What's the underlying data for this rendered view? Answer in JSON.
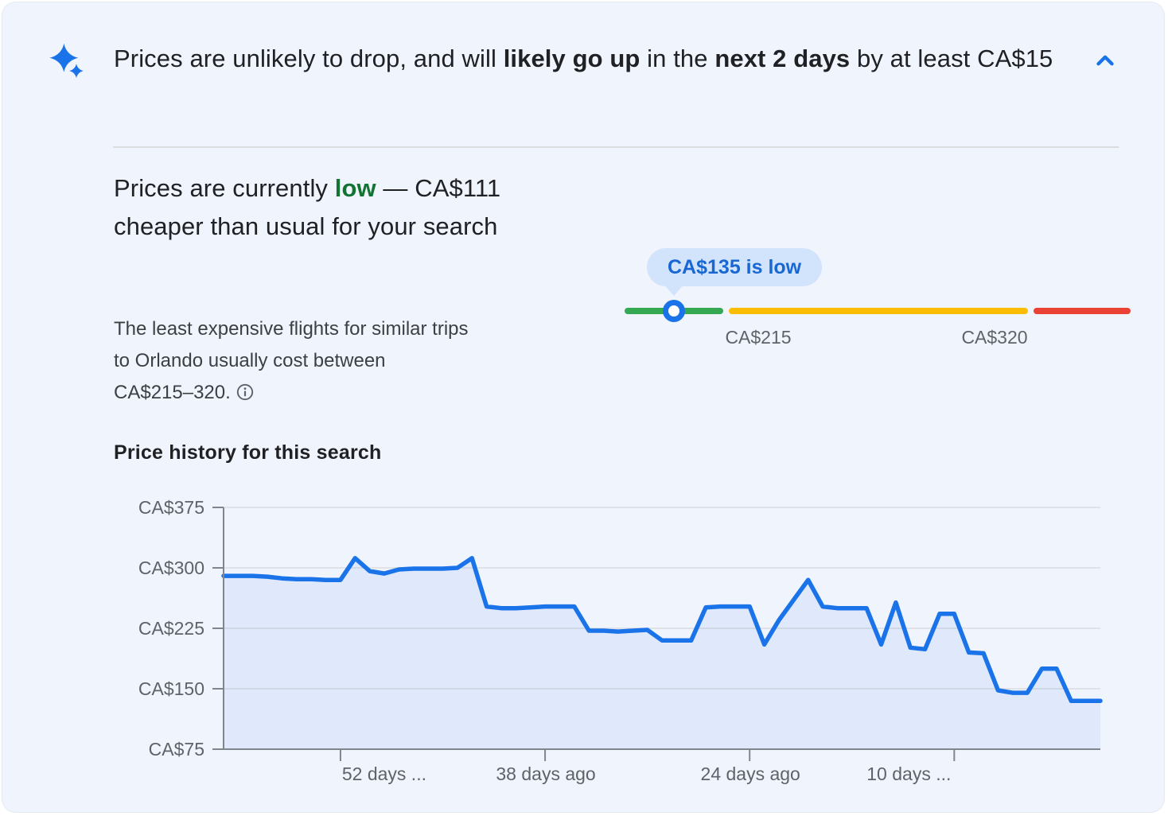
{
  "insight_header": {
    "t1": "Prices are unlikely to drop, and will ",
    "t2": "likely go up",
    "t3": " in the ",
    "t4": "next 2 days",
    "t5": " by at least CA$15"
  },
  "current_price": {
    "t1": "Prices are currently ",
    "t2": "low",
    "t3": " — CA$111 cheaper than usual for your search",
    "detail": "The least expensive flights for similar trips to Orlando usually cost between CA$215–320."
  },
  "price_slider": {
    "tooltip": "CA$135 is low",
    "current_price": 135,
    "low_threshold_label": "CA$215",
    "high_threshold_label": "CA$320",
    "colors": {
      "low_segment": "#34a853",
      "typical_segment": "#fbbc04",
      "high_segment": "#ea4335",
      "marker_ring": "#1a73e8",
      "tooltip_bg": "#d2e3fc",
      "tooltip_text": "#1967d2"
    }
  },
  "history": {
    "heading": "Price history for this search"
  },
  "chart_data": {
    "type": "area",
    "title": "Price history for this search",
    "currency": "CA$",
    "x_start_days_ago": 60,
    "x_end_days_ago": 0,
    "values": [
      290,
      290,
      290,
      289,
      287,
      286,
      286,
      285,
      285,
      312,
      296,
      293,
      298,
      299,
      299,
      299,
      300,
      312,
      252,
      250,
      250,
      251,
      252,
      252,
      252,
      222,
      222,
      221,
      222,
      223,
      210,
      210,
      210,
      251,
      252,
      252,
      252,
      205,
      235,
      260,
      285,
      252,
      250,
      250,
      250,
      205,
      257,
      201,
      199,
      243,
      243,
      195,
      194,
      148,
      145,
      145,
      175,
      175,
      135,
      135,
      135
    ],
    "ylim": [
      75,
      375
    ],
    "y_ticks": [
      {
        "value": 375,
        "label": "CA$375"
      },
      {
        "value": 300,
        "label": "CA$300"
      },
      {
        "value": 225,
        "label": "CA$225"
      },
      {
        "value": 150,
        "label": "CA$150"
      },
      {
        "value": 75,
        "label": "CA$75"
      }
    ],
    "x_ticks": [
      {
        "days_ago": 52,
        "label": "52 days ..."
      },
      {
        "days_ago": 38,
        "label": "38 days ago"
      },
      {
        "days_ago": 24,
        "label": "24 days ago"
      },
      {
        "days_ago": 10,
        "label": "10 days ..."
      }
    ],
    "grid": true,
    "legend": "none",
    "line_color": "#1a73e8",
    "fill_color": "#1a73e8",
    "fill_opacity": 0.08,
    "grid_color": "#dadce0",
    "axis_color": "#80868b",
    "tick_label_color": "#5f6368"
  }
}
